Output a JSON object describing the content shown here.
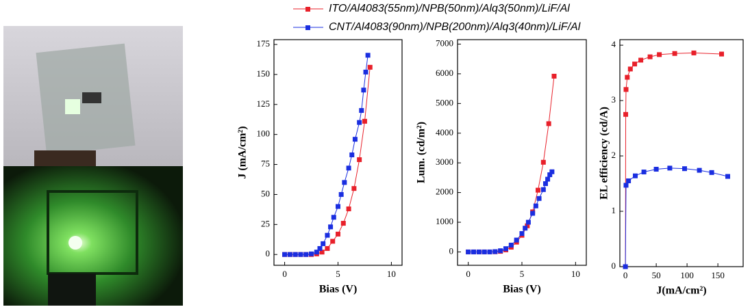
{
  "chart_data": [
    {
      "type": "line",
      "x_label": "Bias (V)",
      "y_label": "J (mA/cm²)",
      "xlim": [
        -1,
        11
      ],
      "xticks": [
        0,
        5,
        10
      ],
      "ylim": [
        -9,
        179
      ],
      "yticks": [
        0,
        25,
        50,
        75,
        100,
        125,
        150,
        175
      ],
      "series": [
        {
          "name": "ITO/Al4083(55nm)/NPB(50nm)/Alq3(50nm)/LiF/Al",
          "color": "#e8202a",
          "x": [
            0,
            0.5,
            1,
            1.5,
            2,
            2.5,
            3,
            3.5,
            4,
            4.5,
            5,
            5.5,
            6,
            6.5,
            7,
            7.5,
            8
          ],
          "values": [
            0,
            0,
            0,
            0,
            0,
            0,
            0.5,
            2,
            5,
            11,
            17,
            26,
            38,
            55,
            79,
            111,
            156
          ]
        },
        {
          "name": "CNT/Al4083(90nm)/NPB(200nm)/Alq3(40nm)/LiF/Al",
          "color": "#1a2ee0",
          "x": [
            0,
            0.5,
            1,
            1.5,
            2,
            2.5,
            3,
            3.3,
            3.6,
            4,
            4.3,
            4.6,
            5,
            5.3,
            5.6,
            6,
            6.3,
            6.6,
            7,
            7.2,
            7.4,
            7.6,
            7.8
          ],
          "values": [
            0,
            0,
            0,
            0,
            0,
            0.5,
            2,
            5,
            9,
            16,
            23,
            31,
            40,
            50,
            60,
            72,
            83,
            96,
            110,
            120,
            137,
            152,
            166
          ]
        }
      ]
    },
    {
      "type": "line",
      "x_label": "Bias (V)",
      "y_label": "Lum. (cd/m²)",
      "xlim": [
        -1,
        11
      ],
      "xticks": [
        0,
        5,
        10
      ],
      "ylim": [
        -450,
        7150
      ],
      "yticks": [
        0,
        1000,
        2000,
        3000,
        4000,
        5000,
        6000,
        7000
      ],
      "series": [
        {
          "color": "#e8202a",
          "x": [
            0,
            0.5,
            1,
            1.5,
            2,
            2.5,
            3,
            3.5,
            4,
            4.5,
            5,
            5.5,
            6,
            6.5,
            7,
            7.5,
            8
          ],
          "values": [
            0,
            0,
            0,
            0,
            0,
            5,
            20,
            70,
            160,
            330,
            560,
            880,
            1350,
            2080,
            3020,
            4320,
            5920
          ]
        },
        {
          "color": "#1a2ee0",
          "x": [
            0,
            0.5,
            1,
            1.5,
            2,
            2.5,
            3,
            3.5,
            4,
            4.5,
            5,
            5.3,
            5.6,
            6,
            6.3,
            6.6,
            7,
            7.2,
            7.4,
            7.6,
            7.8
          ],
          "values": [
            0,
            0,
            0,
            0,
            0,
            10,
            40,
            110,
            230,
            400,
            620,
            800,
            1000,
            1300,
            1550,
            1800,
            2100,
            2300,
            2450,
            2600,
            2700
          ]
        }
      ]
    },
    {
      "type": "line",
      "x_label": "J(mA/cm²)",
      "y_label": "EL efficiency  (cd/A)",
      "xlim": [
        -9,
        191
      ],
      "xticks": [
        0,
        50,
        100,
        150
      ],
      "ylim": [
        0,
        4.1
      ],
      "yticks": [
        0,
        1,
        2,
        3,
        4
      ],
      "series": [
        {
          "color": "#e8202a",
          "x": [
            0,
            0.5,
            1,
            3,
            8,
            15,
            25,
            40,
            55,
            80,
            111,
            156
          ],
          "values": [
            0,
            2.75,
            3.2,
            3.42,
            3.57,
            3.66,
            3.73,
            3.79,
            3.83,
            3.85,
            3.86,
            3.84
          ]
        },
        {
          "color": "#1a2ee0",
          "x": [
            0,
            1,
            5,
            16,
            30,
            50,
            72,
            96,
            120,
            140,
            166
          ],
          "values": [
            0,
            1.47,
            1.55,
            1.64,
            1.71,
            1.76,
            1.78,
            1.77,
            1.74,
            1.7,
            1.63
          ]
        }
      ]
    }
  ]
}
